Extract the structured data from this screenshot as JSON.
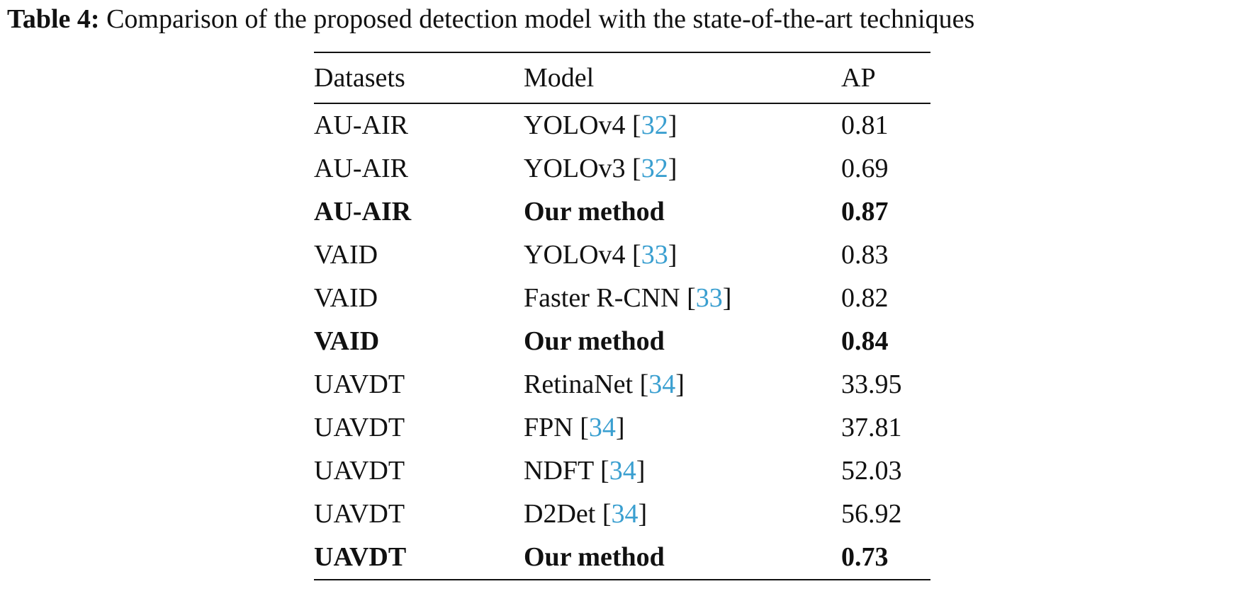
{
  "caption": {
    "label": "Table 4:",
    "text": "Comparison of the proposed detection model with the state-of-the-art techniques"
  },
  "table": {
    "headers": [
      "Datasets",
      "Model",
      "AP"
    ],
    "rows": [
      {
        "dataset": "AU-AIR",
        "model": "YOLOv4",
        "ref": "32",
        "ap": "0.81",
        "bold": false
      },
      {
        "dataset": "AU-AIR",
        "model": "YOLOv3",
        "ref": "32",
        "ap": "0.69",
        "bold": false
      },
      {
        "dataset": "AU-AIR",
        "model": "Our method",
        "ref": "",
        "ap": "0.87",
        "bold": true
      },
      {
        "dataset": "VAID",
        "model": "YOLOv4",
        "ref": "33",
        "ap": "0.83",
        "bold": false
      },
      {
        "dataset": "VAID",
        "model": "Faster R-CNN",
        "ref": "33",
        "ap": "0.82",
        "bold": false
      },
      {
        "dataset": "VAID",
        "model": "Our method",
        "ref": "",
        "ap": "0.84",
        "bold": true
      },
      {
        "dataset": "UAVDT",
        "model": "RetinaNet",
        "ref": "34",
        "ap": "33.95",
        "bold": false
      },
      {
        "dataset": "UAVDT",
        "model": "FPN",
        "ref": "34",
        "ap": "37.81",
        "bold": false
      },
      {
        "dataset": "UAVDT",
        "model": "NDFT",
        "ref": "34",
        "ap": "52.03",
        "bold": false
      },
      {
        "dataset": "UAVDT",
        "model": "D2Det",
        "ref": "34",
        "ap": "56.92",
        "bold": false
      },
      {
        "dataset": "UAVDT",
        "model": "Our method",
        "ref": "",
        "ap": "0.73",
        "bold": true
      }
    ]
  },
  "colors": {
    "text": "#111111",
    "citation_link": "#3a9fd0"
  }
}
